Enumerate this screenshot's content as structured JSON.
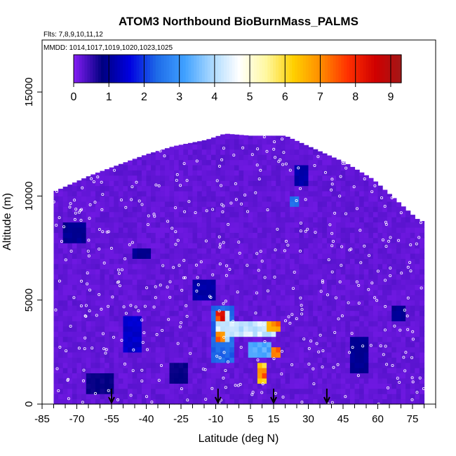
{
  "chart_data": {
    "type": "heatmap",
    "title": "ATOM3 Northbound BioBurnMass_PALMS",
    "subtitle_flights": "Flts: 7,8,9,10,11,12",
    "subtitle_dates": "MMDD: 1014,1017,1019,1020,1023,1025",
    "xlabel": "Latitude (deg N)",
    "ylabel": "Altitude (m)",
    "xlim": [
      -85,
      85
    ],
    "ylim": [
      0,
      17500
    ],
    "x_ticks": [
      -85,
      -70,
      -55,
      -40,
      -25,
      -10,
      5,
      15,
      30,
      45,
      60,
      75
    ],
    "y_ticks": [
      0,
      5000,
      10000,
      15000
    ],
    "colorbar": {
      "min": 0,
      "max": 9.3,
      "ticks": [
        0,
        1,
        2,
        3,
        4,
        5,
        6,
        7,
        8,
        9
      ],
      "colors": [
        "#7f1cf0",
        "#000080",
        "#0000e0",
        "#1e6be8",
        "#3fa0ff",
        "#a8d8ff",
        "#ffffff",
        "#fff8a0",
        "#ffd000",
        "#ff8c00",
        "#ff3000",
        "#d00000",
        "#a01818"
      ]
    },
    "background_value": 0.1,
    "max_altitude_profile": [
      {
        "lat": -80,
        "alt": 10200
      },
      {
        "lat": -72,
        "alt": 10600
      },
      {
        "lat": -64,
        "alt": 11000
      },
      {
        "lat": -52,
        "alt": 11500
      },
      {
        "lat": -40,
        "alt": 12000
      },
      {
        "lat": -28,
        "alt": 12400
      },
      {
        "lat": -14,
        "alt": 12700
      },
      {
        "lat": -6,
        "alt": 13000
      },
      {
        "lat": 5,
        "alt": 12900
      },
      {
        "lat": 20,
        "alt": 12900
      },
      {
        "lat": 34,
        "alt": 12200
      },
      {
        "lat": 46,
        "alt": 11600
      },
      {
        "lat": 58,
        "alt": 10800
      },
      {
        "lat": 70,
        "alt": 9600
      },
      {
        "lat": 78,
        "alt": 8800
      }
    ],
    "enhancements": [
      {
        "lat": [
          -12,
          -2
        ],
        "alt": [
          2000,
          4800
        ],
        "value": 2.5
      },
      {
        "lat": [
          -10,
          -4
        ],
        "alt": [
          3000,
          4500
        ],
        "value": 4.5
      },
      {
        "lat": [
          -9,
          -6
        ],
        "alt": [
          3900,
          4400
        ],
        "value": 8.5
      },
      {
        "lat": [
          -9,
          -6
        ],
        "alt": [
          3000,
          3500
        ],
        "value": 7.5
      },
      {
        "lat": [
          -4,
          16
        ],
        "alt": [
          3200,
          4000
        ],
        "value": 4.5
      },
      {
        "lat": [
          5,
          14
        ],
        "alt": [
          2300,
          3000
        ],
        "value": 3.5
      },
      {
        "lat": [
          8,
          12
        ],
        "alt": [
          1000,
          2000
        ],
        "value": 6.8
      },
      {
        "lat": [
          9,
          11
        ],
        "alt": [
          1300,
          1800
        ],
        "value": 8.0
      },
      {
        "lat": [
          13,
          18
        ],
        "alt": [
          3400,
          4000
        ],
        "value": 7.5
      },
      {
        "lat": [
          14,
          17
        ],
        "alt": [
          2200,
          2700
        ],
        "value": 7.8
      },
      {
        "lat": [
          -50,
          -43
        ],
        "alt": [
          2500,
          4300
        ],
        "value": 1.5
      },
      {
        "lat": [
          -20,
          -10
        ],
        "alt": [
          5000,
          6000
        ],
        "value": 1.2
      },
      {
        "lat": [
          25,
          30
        ],
        "alt": [
          10600,
          11500
        ],
        "value": 1.2
      },
      {
        "lat": [
          22,
          26
        ],
        "alt": [
          9500,
          10000
        ],
        "value": 2.5
      },
      {
        "lat": [
          -75,
          -66
        ],
        "alt": [
          7800,
          8800
        ],
        "value": 1.0
      },
      {
        "lat": [
          -45,
          -38
        ],
        "alt": [
          7000,
          7500
        ],
        "value": 1.0
      },
      {
        "lat": [
          48,
          56
        ],
        "alt": [
          1500,
          3200
        ],
        "value": 1.0
      },
      {
        "lat": [
          67,
          72
        ],
        "alt": [
          4000,
          4800
        ],
        "value": 1.0
      },
      {
        "lat": [
          -65,
          -55
        ],
        "alt": [
          500,
          1500
        ],
        "value": 0.8
      },
      {
        "lat": [
          -30,
          -22
        ],
        "alt": [
          900,
          2000
        ],
        "value": 0.8
      }
    ],
    "flight_arrows_lat": [
      -55,
      -9,
      15,
      38
    ]
  }
}
